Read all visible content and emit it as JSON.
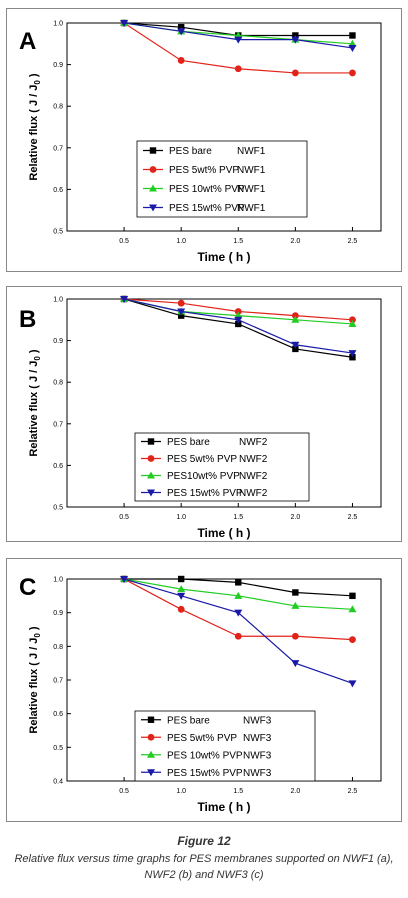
{
  "figure": {
    "title": "Figure 12",
    "caption": "Relative flux versus time graphs for PES membranes supported on NWF1 (a), NWF2 (b) and NWF3 (c)"
  },
  "colors": {
    "black": "#000000",
    "red": "#e2231a",
    "green": "#22cc22",
    "blue": "#1a1aa8"
  },
  "chart_data": [
    {
      "type": "line",
      "panel_label": "A",
      "xlabel": "Time ( h )",
      "ylabel": "Relative flux ( J / J",
      "ylabel_sub": "0",
      "ylabel_end": " )",
      "xlim": [
        0.0,
        2.75
      ],
      "ylim": [
        0.5,
        1.0
      ],
      "xticks": [
        "0.5",
        "1.0",
        "1.5",
        "2.0",
        "2.5"
      ],
      "yticks": [
        "0.5",
        "0.6",
        "0.7",
        "0.8",
        "0.9",
        "1.0"
      ],
      "x": [
        0.5,
        1.0,
        1.5,
        2.0,
        2.5
      ],
      "legend_position": "center",
      "series": [
        {
          "name": "PES bare",
          "tag": "NWF1",
          "color": "#000000",
          "marker": "square",
          "values": [
            1.0,
            0.99,
            0.97,
            0.97,
            0.97
          ]
        },
        {
          "name": "PES 5wt% PVP",
          "tag": "NWF1",
          "color": "#e2231a",
          "marker": "circle",
          "values": [
            1.0,
            0.91,
            0.89,
            0.88,
            0.88
          ]
        },
        {
          "name": "PES 10wt% PVP",
          "tag": "NWF1",
          "color": "#22cc22",
          "marker": "triangle-up",
          "values": [
            1.0,
            0.98,
            0.97,
            0.96,
            0.95
          ]
        },
        {
          "name": "PES 15wt% PVP",
          "tag": "NWF1",
          "color": "#1a1aa8",
          "marker": "triangle-down",
          "values": [
            1.0,
            0.98,
            0.96,
            0.96,
            0.94
          ]
        }
      ]
    },
    {
      "type": "line",
      "panel_label": "B",
      "xlabel": "Time ( h )",
      "ylabel": "Relative flux ( J / J",
      "ylabel_sub": "0",
      "ylabel_end": " )",
      "xlim": [
        0.0,
        2.75
      ],
      "ylim": [
        0.5,
        1.0
      ],
      "xticks": [
        "0.5",
        "1.0",
        "1.5",
        "2.0",
        "2.5"
      ],
      "yticks": [
        "0.5",
        "0.6",
        "0.7",
        "0.8",
        "0.9",
        "1.0"
      ],
      "x": [
        0.5,
        1.0,
        1.5,
        2.0,
        2.5
      ],
      "legend_position": "bottom-center",
      "series": [
        {
          "name": "PES bare",
          "tag": "NWF2",
          "color": "#000000",
          "marker": "square",
          "values": [
            1.0,
            0.96,
            0.94,
            0.88,
            0.86
          ]
        },
        {
          "name": "PES 5wt% PVP",
          "tag": "NWF2",
          "color": "#e2231a",
          "marker": "circle",
          "values": [
            1.0,
            0.99,
            0.97,
            0.96,
            0.95
          ]
        },
        {
          "name": "PES10wt% PVP",
          "tag": "NWF2",
          "color": "#22cc22",
          "marker": "triangle-up",
          "values": [
            1.0,
            0.97,
            0.96,
            0.95,
            0.94
          ]
        },
        {
          "name": "PES 15wt% PVP",
          "tag": "NWF2",
          "color": "#1a1aa8",
          "marker": "triangle-down",
          "values": [
            1.0,
            0.97,
            0.95,
            0.89,
            0.87
          ]
        }
      ]
    },
    {
      "type": "line",
      "panel_label": "C",
      "xlabel": "Time ( h )",
      "ylabel": "Relative flux ( J / J",
      "ylabel_sub": "0",
      "ylabel_end": " )",
      "xlim": [
        0.0,
        2.75
      ],
      "ylim": [
        0.4,
        1.0
      ],
      "xticks": [
        "0.5",
        "1.0",
        "1.5",
        "2.0",
        "2.5"
      ],
      "yticks": [
        "0.4",
        "0.5",
        "0.6",
        "0.7",
        "0.8",
        "0.9",
        "1.0"
      ],
      "x": [
        0.5,
        1.0,
        1.5,
        2.0,
        2.5
      ],
      "legend_position": "bottom-center",
      "series": [
        {
          "name": "PES bare",
          "tag": "NWF3",
          "color": "#000000",
          "marker": "square",
          "values": [
            1.0,
            1.0,
            0.99,
            0.96,
            0.95
          ]
        },
        {
          "name": "PES 5wt% PVP",
          "tag": "NWF3",
          "color": "#e2231a",
          "marker": "circle",
          "values": [
            1.0,
            0.91,
            0.83,
            0.83,
            0.82
          ]
        },
        {
          "name": "PES 10wt% PVP",
          "tag": "NWF3",
          "color": "#22cc22",
          "marker": "triangle-up",
          "values": [
            1.0,
            0.97,
            0.95,
            0.92,
            0.91
          ]
        },
        {
          "name": "PES 15wt% PVP",
          "tag": "NWF3",
          "color": "#1a1aa8",
          "marker": "triangle-down",
          "values": [
            1.0,
            0.95,
            0.9,
            0.75,
            0.69
          ]
        }
      ]
    }
  ]
}
